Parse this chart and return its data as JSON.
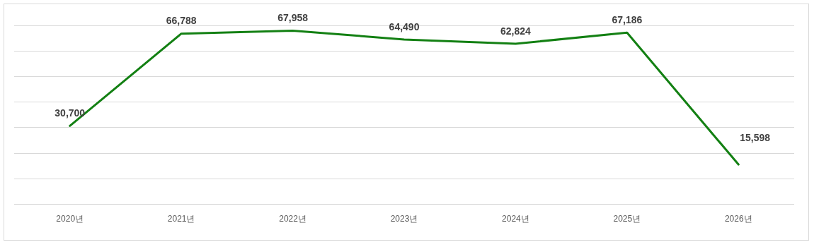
{
  "chart_data": {
    "type": "line",
    "categories": [
      "2020년",
      "2021년",
      "2022년",
      "2023년",
      "2024년",
      "2025년",
      "2026년"
    ],
    "series": [
      {
        "color": "#138013",
        "values": [
          30700,
          66788,
          67958,
          64490,
          62824,
          67186,
          15598
        ],
        "value_labels": [
          "30,700",
          "66,788",
          "67,958",
          "64,490",
          "62,824",
          "67,186",
          "15,598"
        ]
      }
    ],
    "tick_labels": "x",
    "grid": "y",
    "legend": false,
    "marker": "none",
    "line_style": "solid"
  }
}
